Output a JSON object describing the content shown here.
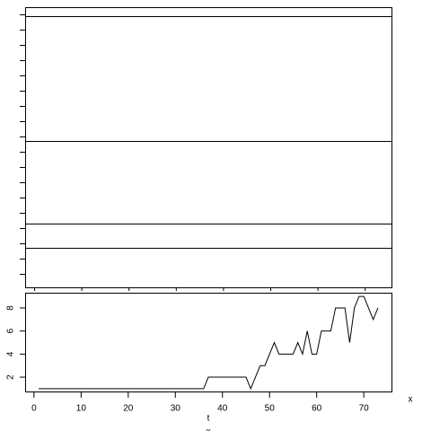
{
  "chart_data": {
    "type": "line",
    "xlabel": "t",
    "ylabel": "x",
    "annotations": [
      "x"
    ],
    "x": [
      1,
      36,
      37,
      45,
      46,
      47,
      48,
      49,
      50,
      51,
      52,
      55,
      56,
      57,
      58,
      59,
      60,
      61,
      63,
      64,
      66,
      67,
      68,
      69,
      70,
      72,
      73
    ],
    "values": [
      1,
      1,
      2,
      2,
      1,
      2,
      3,
      3,
      4,
      5,
      4,
      4,
      5,
      4,
      6,
      4,
      4,
      6,
      6,
      8,
      8,
      5,
      8,
      9,
      9,
      7,
      8
    ],
    "color": "#000000",
    "xlim": [
      -1.88,
      75.88
    ],
    "xticks": [
      0,
      10,
      20,
      30,
      40,
      50,
      60,
      70
    ],
    "ylim": [
      0.68,
      9.32
    ],
    "yticks": [
      2,
      4,
      6,
      8
    ]
  }
}
